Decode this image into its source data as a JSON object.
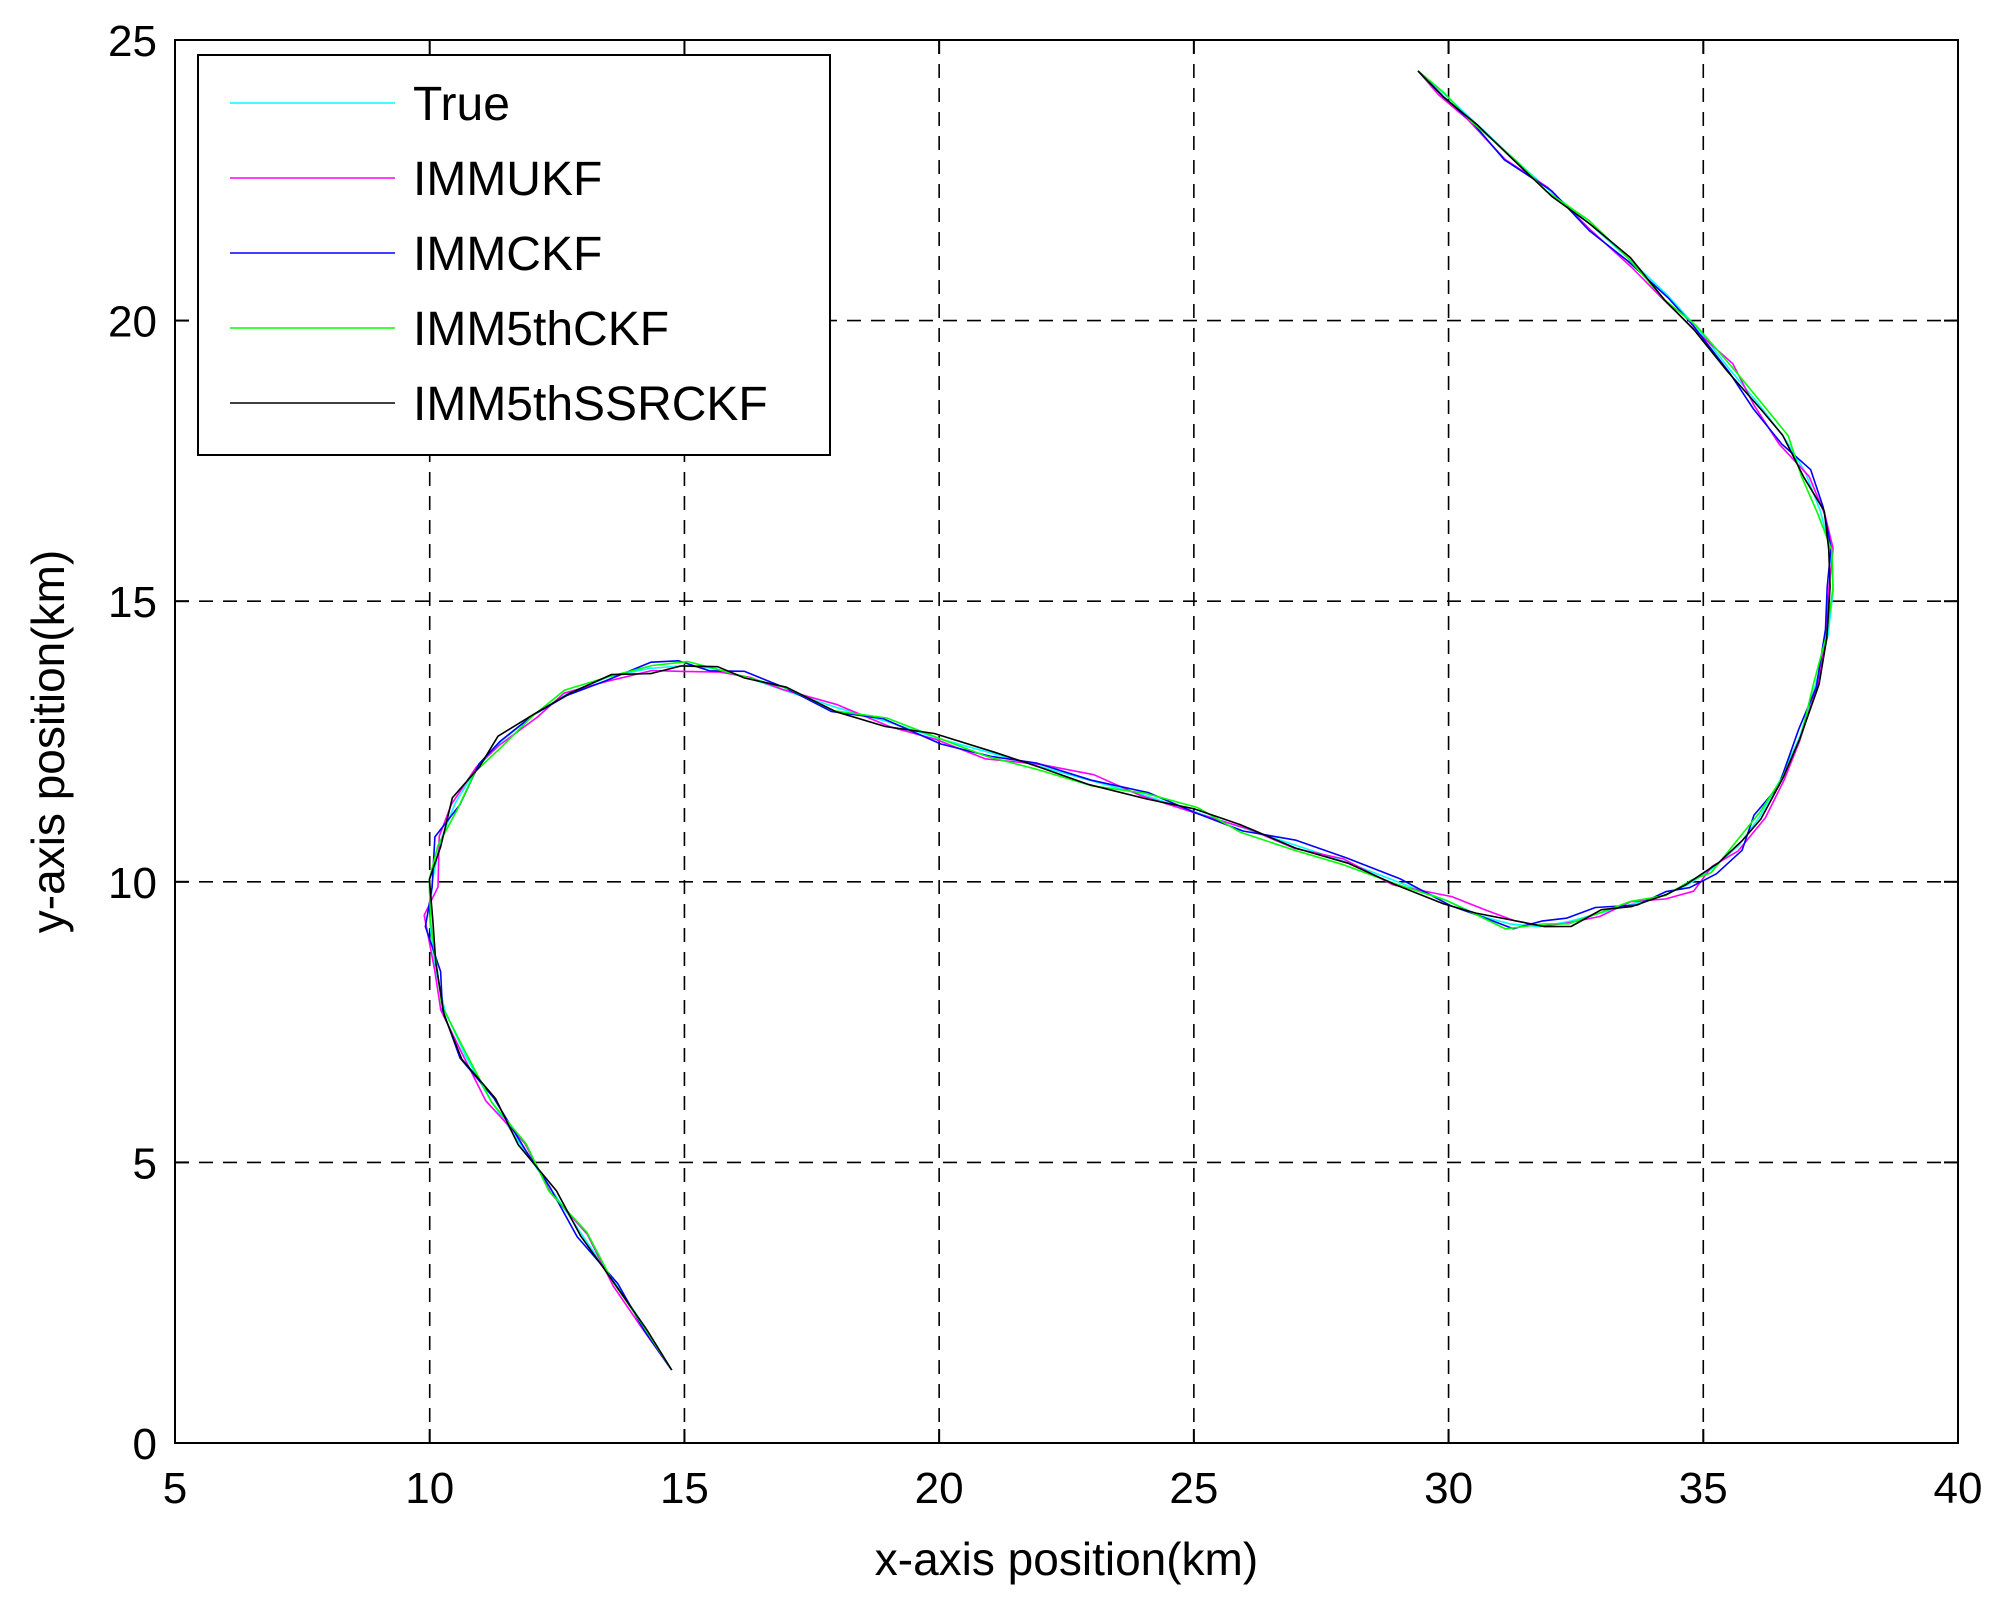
{
  "chart_data": {
    "type": "line",
    "xlabel": "x-axis position(km)",
    "ylabel": "y-axis position(km)",
    "xlim": [
      5,
      40
    ],
    "ylim": [
      0,
      25
    ],
    "xticks": [
      5,
      10,
      15,
      20,
      25,
      30,
      35,
      40
    ],
    "yticks": [
      0,
      5,
      10,
      15,
      20,
      25
    ],
    "xtick_labels": [
      "5",
      "10",
      "15",
      "20",
      "25",
      "30",
      "35",
      "40"
    ],
    "ytick_labels": [
      "0",
      "5",
      "10",
      "15",
      "20",
      "25"
    ],
    "grid": true,
    "legend_position": "top-left",
    "base_path": {
      "x": [
        14.75,
        14.2,
        13.6,
        13.0,
        12.4,
        11.8,
        11.2,
        10.7,
        10.3,
        10.1,
        10.0,
        10.05,
        10.2,
        10.5,
        10.9,
        11.4,
        12.0,
        12.7,
        13.5,
        14.3,
        15.0,
        15.6,
        16.2,
        17.0,
        18.0,
        19.0,
        20.0,
        21.0,
        22.0,
        23.0,
        24.0,
        25.0,
        26.0,
        27.0,
        28.0,
        29.0,
        30.0,
        30.6,
        31.2,
        31.8,
        32.4,
        33.0,
        33.6,
        34.2,
        34.7,
        35.2,
        35.7,
        36.1,
        36.5,
        36.9,
        37.2,
        37.45,
        37.55,
        37.5,
        37.3,
        37.0,
        36.6,
        36.1,
        35.5,
        34.9,
        34.3,
        33.6,
        32.8,
        32.0,
        31.2,
        30.5,
        29.9,
        29.4
      ],
      "y": [
        1.3,
        2.1,
        2.9,
        3.7,
        4.5,
        5.3,
        6.1,
        6.9,
        7.7,
        8.5,
        9.3,
        10.0,
        10.7,
        11.4,
        12.0,
        12.5,
        12.95,
        13.35,
        13.65,
        13.8,
        13.85,
        13.8,
        13.65,
        13.4,
        13.1,
        12.85,
        12.55,
        12.3,
        12.05,
        11.8,
        11.55,
        11.25,
        10.95,
        10.65,
        10.35,
        10.0,
        9.65,
        9.4,
        9.25,
        9.2,
        9.3,
        9.45,
        9.6,
        9.75,
        9.95,
        10.25,
        10.65,
        11.15,
        11.8,
        12.6,
        13.5,
        14.4,
        15.2,
        15.9,
        16.6,
        17.3,
        17.9,
        18.5,
        19.15,
        19.85,
        20.45,
        21.05,
        21.7,
        22.3,
        22.95,
        23.55,
        24.05,
        24.45
      ]
    },
    "series": [
      {
        "name": "True",
        "color": "#00ffff",
        "noise": 0.0,
        "seed": 1,
        "stroke": 1.6
      },
      {
        "name": "IMMUKF",
        "color": "#ff00ff",
        "noise": 0.12,
        "seed": 7,
        "stroke": 1.6
      },
      {
        "name": "IMMCKF",
        "color": "#0000ff",
        "noise": 0.12,
        "seed": 13,
        "stroke": 1.6
      },
      {
        "name": "IMM5thCKF",
        "color": "#00ff00",
        "noise": 0.09,
        "seed": 21,
        "stroke": 1.6
      },
      {
        "name": "IMM5thSSRCKF",
        "color": "#000000",
        "noise": 0.1,
        "seed": 33,
        "stroke": 1.6
      }
    ]
  }
}
